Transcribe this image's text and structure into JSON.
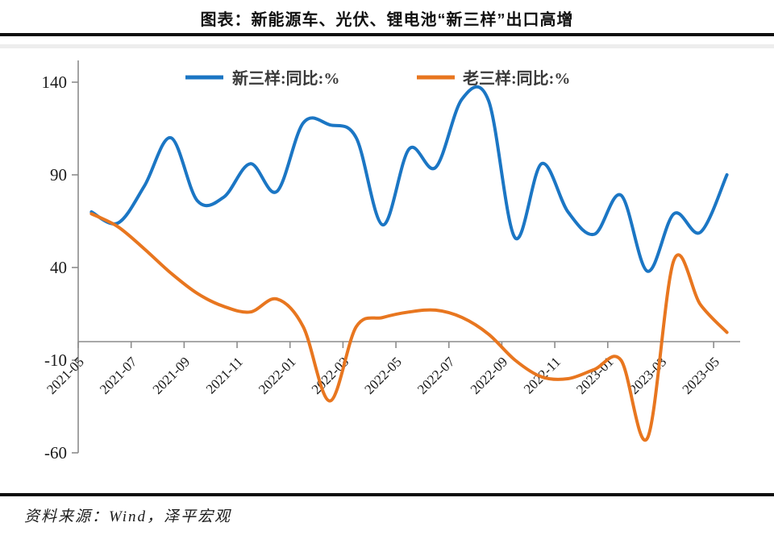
{
  "page": {
    "title": "图表：新能源车、光伏、锂电池“新三样”出口高增",
    "source": "资料来源：Wind，泽平宏观"
  },
  "chart_data": {
    "type": "line",
    "title": "图表：新能源车、光伏、锂电池“新三样”出口高增",
    "categories": [
      "2021-05",
      "2021-06",
      "2021-07",
      "2021-08",
      "2021-09",
      "2021-10",
      "2021-11",
      "2021-12",
      "2022-01",
      "2022-02",
      "2022-03",
      "2022-04",
      "2022-05",
      "2022-06",
      "2022-07",
      "2022-08",
      "2022-09",
      "2022-10",
      "2022-11",
      "2022-12",
      "2023-01",
      "2023-02",
      "2023-03",
      "2023-04",
      "2023-05"
    ],
    "x_tick_labels": [
      "2021-05",
      "2021-07",
      "2021-09",
      "2021-11",
      "2022-01",
      "2022-03",
      "2022-05",
      "2022-07",
      "2022-09",
      "2022-11",
      "2023-01",
      "2023-03",
      "2023-05"
    ],
    "series": [
      {
        "name": "新三样:同比:%",
        "color": "#1b76c4",
        "values": [
          70,
          64,
          84,
          110,
          76,
          78,
          96,
          81,
          118,
          117,
          110,
          63,
          104,
          94,
          131,
          130,
          56,
          96,
          70,
          58,
          79,
          38,
          69,
          59,
          90
        ]
      },
      {
        "name": "老三样:同比:%",
        "color": "#e8761f",
        "values": [
          69,
          62,
          50,
          37,
          26,
          19,
          16,
          23,
          8,
          -32,
          8,
          13,
          16,
          17,
          13,
          4,
          -10,
          -19,
          -20,
          -15,
          -10,
          -52,
          44,
          20,
          5
        ]
      }
    ],
    "y_ticks": [
      140,
      90,
      40,
      -10,
      -60
    ],
    "ylim": [
      -60,
      152
    ],
    "xlabel": "",
    "ylabel": "",
    "unit": "%",
    "grid": false,
    "legend_position": "top",
    "axis_color": "#8c8c8c"
  }
}
